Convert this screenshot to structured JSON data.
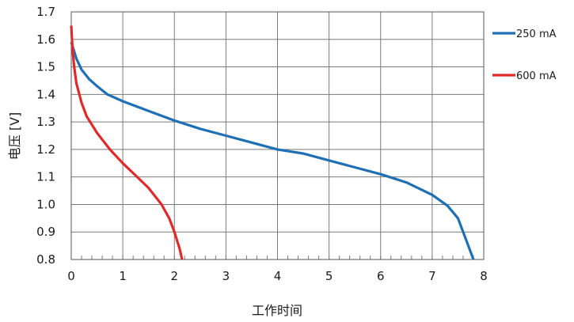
{
  "chart_data": {
    "type": "line",
    "title": "",
    "xlabel": "工作时间",
    "ylabel": "电压 [V]",
    "xlim": [
      0,
      8
    ],
    "ylim": [
      0.8,
      1.7
    ],
    "x_ticks": [
      "0",
      "1",
      "2",
      "3",
      "4",
      "5",
      "6",
      "7",
      "8"
    ],
    "y_ticks": [
      "0.8",
      "0.9",
      "1.0",
      "1.1",
      "1.2",
      "1.3",
      "1.4",
      "1.5",
      "1.6",
      "1.7"
    ],
    "grid": true,
    "legend_position": "right",
    "series": [
      {
        "name": "250 mA",
        "color": "#1f6fb4",
        "x": [
          0,
          0.05,
          0.1,
          0.2,
          0.35,
          0.5,
          0.7,
          1.0,
          1.5,
          2.0,
          2.5,
          3.0,
          3.5,
          4.0,
          4.5,
          5.0,
          5.5,
          6.0,
          6.5,
          7.0,
          7.3,
          7.5,
          7.6,
          7.7,
          7.8
        ],
        "y": [
          1.59,
          1.56,
          1.53,
          1.49,
          1.455,
          1.43,
          1.4,
          1.375,
          1.34,
          1.305,
          1.275,
          1.25,
          1.225,
          1.2,
          1.185,
          1.16,
          1.135,
          1.11,
          1.08,
          1.035,
          0.995,
          0.95,
          0.9,
          0.85,
          0.8
        ]
      },
      {
        "name": "600 mA",
        "color": "#e02a2a",
        "x": [
          0,
          0.02,
          0.05,
          0.1,
          0.2,
          0.3,
          0.5,
          0.75,
          1.0,
          1.25,
          1.5,
          1.75,
          1.9,
          2.0,
          2.1,
          2.15
        ],
        "y": [
          1.65,
          1.58,
          1.51,
          1.44,
          1.37,
          1.32,
          1.26,
          1.2,
          1.15,
          1.105,
          1.06,
          1.0,
          0.95,
          0.9,
          0.84,
          0.8
        ]
      }
    ]
  }
}
